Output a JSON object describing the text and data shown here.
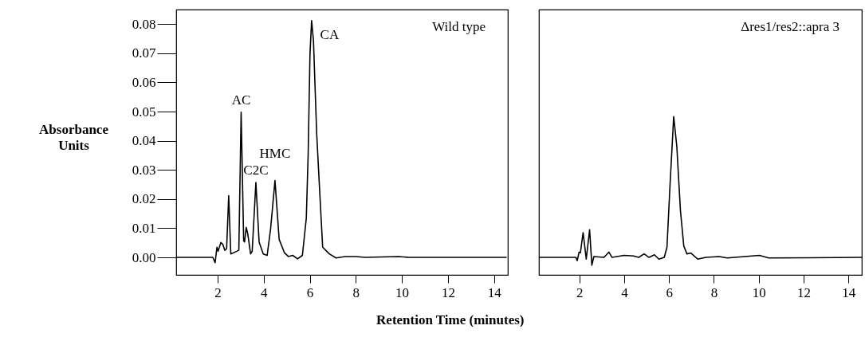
{
  "chart_data": [
    {
      "type": "line",
      "xlabel": "Retention Time (minutes)",
      "ylabel": "Absorbance Units",
      "xlim": [
        0.2,
        14.6
      ],
      "ylim": [
        -0.006,
        0.085
      ],
      "xticks": [
        2,
        4,
        6,
        8,
        10,
        12,
        14
      ],
      "yticks": [
        {
          "value": 0,
          "label": "0.00"
        },
        {
          "value": 0.01,
          "label": "0.01"
        },
        {
          "value": 0.02,
          "label": "0.02"
        },
        {
          "value": 0.03,
          "label": "0.03"
        },
        {
          "value": 0.04,
          "label": "0.04"
        },
        {
          "value": 0.05,
          "label": "0.05"
        },
        {
          "value": 0.06,
          "label": "0.06"
        },
        {
          "value": 0.07,
          "label": "0.07"
        },
        {
          "value": 0.08,
          "label": "0.08"
        }
      ],
      "grid": false,
      "marker": "none",
      "line_style": "solid",
      "annotations": [
        "Wild type",
        {
          "text": "AC",
          "x": 3.02,
          "y": 0.0498
        },
        {
          "text": "C2C",
          "x": 3.66,
          "y": 0.0257
        },
        {
          "text": "HMC",
          "x": 4.49,
          "y": 0.0264
        },
        {
          "text": "CA",
          "x": 6.08,
          "y": 0.0812
        }
      ],
      "series": [
        {
          "color": "#000000",
          "x": [
            0.2,
            1.79,
            1.89,
            1.97,
            2.02,
            2.14,
            2.23,
            2.31,
            2.39,
            2.48,
            2.57,
            2.83,
            2.92,
            3.02,
            3.13,
            3.17,
            3.24,
            3.31,
            3.43,
            3.5,
            3.66,
            3.8,
            3.98,
            4.15,
            4.3,
            4.49,
            4.67,
            4.9,
            5.07,
            5.26,
            5.47,
            5.68,
            5.85,
            5.93,
            6.01,
            6.08,
            6.16,
            6.3,
            6.45,
            6.56,
            6.85,
            7.14,
            7.54,
            8.0,
            8.4,
            9.84,
            10.3,
            14.55
          ],
          "values": [
            0,
            0,
            -0.0018,
            0.0035,
            0.0021,
            0.0051,
            0.0044,
            0.0024,
            0.003,
            0.0212,
            0.0012,
            0.0021,
            0.0025,
            0.0498,
            0.0057,
            0.0053,
            0.0103,
            0.008,
            0.0012,
            0.0021,
            0.0257,
            0.0053,
            0.0012,
            0.0007,
            0.0098,
            0.0264,
            0.0062,
            0.0016,
            0.0003,
            0.0007,
            -0.0005,
            0.0007,
            0.0135,
            0.0353,
            0.0698,
            0.0812,
            0.0744,
            0.0425,
            0.0198,
            0.0035,
            0.0012,
            -0.0002,
            0.0003,
            0.0003,
            0,
            0.0003,
            0,
            0
          ]
        }
      ]
    },
    {
      "type": "line",
      "xlim": [
        0.2,
        14.6
      ],
      "ylim": [
        -0.006,
        0.085
      ],
      "xticks": [
        2,
        4,
        6,
        8,
        10,
        12,
        14
      ],
      "tick_labels": "x",
      "grid": false,
      "marker": "none",
      "line_style": "solid",
      "annotations": [
        "Δres1/res2::apra 3"
      ],
      "series": [
        {
          "color": "#000000",
          "x": [
            0.2,
            1.85,
            1.91,
            1.99,
            2.05,
            2.17,
            2.31,
            2.46,
            2.56,
            2.65,
            3.1,
            3.32,
            3.46,
            4.0,
            4.42,
            4.65,
            4.89,
            5.11,
            5.35,
            5.55,
            5.79,
            5.91,
            6.05,
            6.21,
            6.35,
            6.51,
            6.66,
            6.8,
            6.98,
            7.28,
            7.64,
            8.24,
            8.59,
            10.03,
            10.45,
            14.6
          ],
          "values": [
            0,
            0,
            -0.0011,
            0.0018,
            0.0016,
            0.0085,
            -0.0006,
            0.0095,
            -0.0027,
            0.0003,
            0,
            0.0018,
            0,
            0.0007,
            0.0005,
            0,
            0.0012,
            0,
            0.0009,
            -0.0006,
            0,
            0.0035,
            0.0253,
            0.0483,
            0.038,
            0.0162,
            0.0039,
            0.0012,
            0.0015,
            -0.0006,
            0,
            0.0003,
            -0.0002,
            0.0007,
            -0.0002,
            0
          ]
        }
      ]
    }
  ]
}
